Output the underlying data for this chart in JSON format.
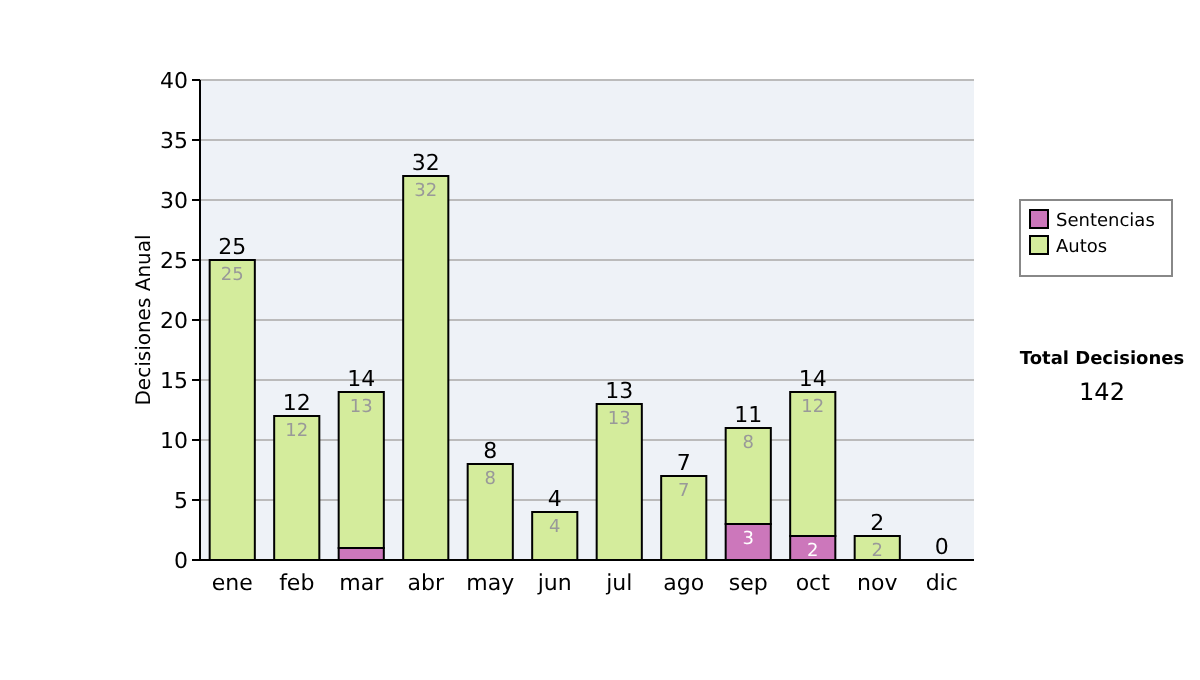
{
  "chart_data": {
    "type": "bar",
    "stacked": true,
    "ylabel": "Decisiones Anual",
    "categories": [
      "ene",
      "feb",
      "mar",
      "abr",
      "may",
      "jun",
      "jul",
      "ago",
      "sep",
      "oct",
      "nov",
      "dic"
    ],
    "series": [
      {
        "name": "Sentencias",
        "color": "#cc77bb",
        "values": [
          0,
          0,
          1,
          0,
          0,
          0,
          0,
          0,
          3,
          2,
          0,
          0
        ],
        "value_labels": [
          null,
          null,
          null,
          null,
          null,
          null,
          null,
          null,
          "3",
          "2",
          null,
          null
        ]
      },
      {
        "name": "Autos",
        "color": "#d4ec9c",
        "values": [
          25,
          12,
          13,
          32,
          8,
          4,
          13,
          7,
          8,
          12,
          2,
          0
        ],
        "value_labels": [
          "25",
          "12",
          "13",
          "32",
          "8",
          "4",
          "13",
          "7",
          "8",
          "12",
          "2",
          null
        ]
      }
    ],
    "totals": [
      "25",
      "12",
      "14",
      "32",
      "8",
      "4",
      "13",
      "7",
      "11",
      "14",
      "2",
      "0"
    ],
    "ylim": [
      0,
      40
    ],
    "yticks": [
      0,
      5,
      10,
      15,
      20,
      25,
      30,
      35,
      40
    ],
    "grid": "y",
    "legend": "right",
    "annotations": [
      "Total Decisiones",
      "142"
    ]
  }
}
